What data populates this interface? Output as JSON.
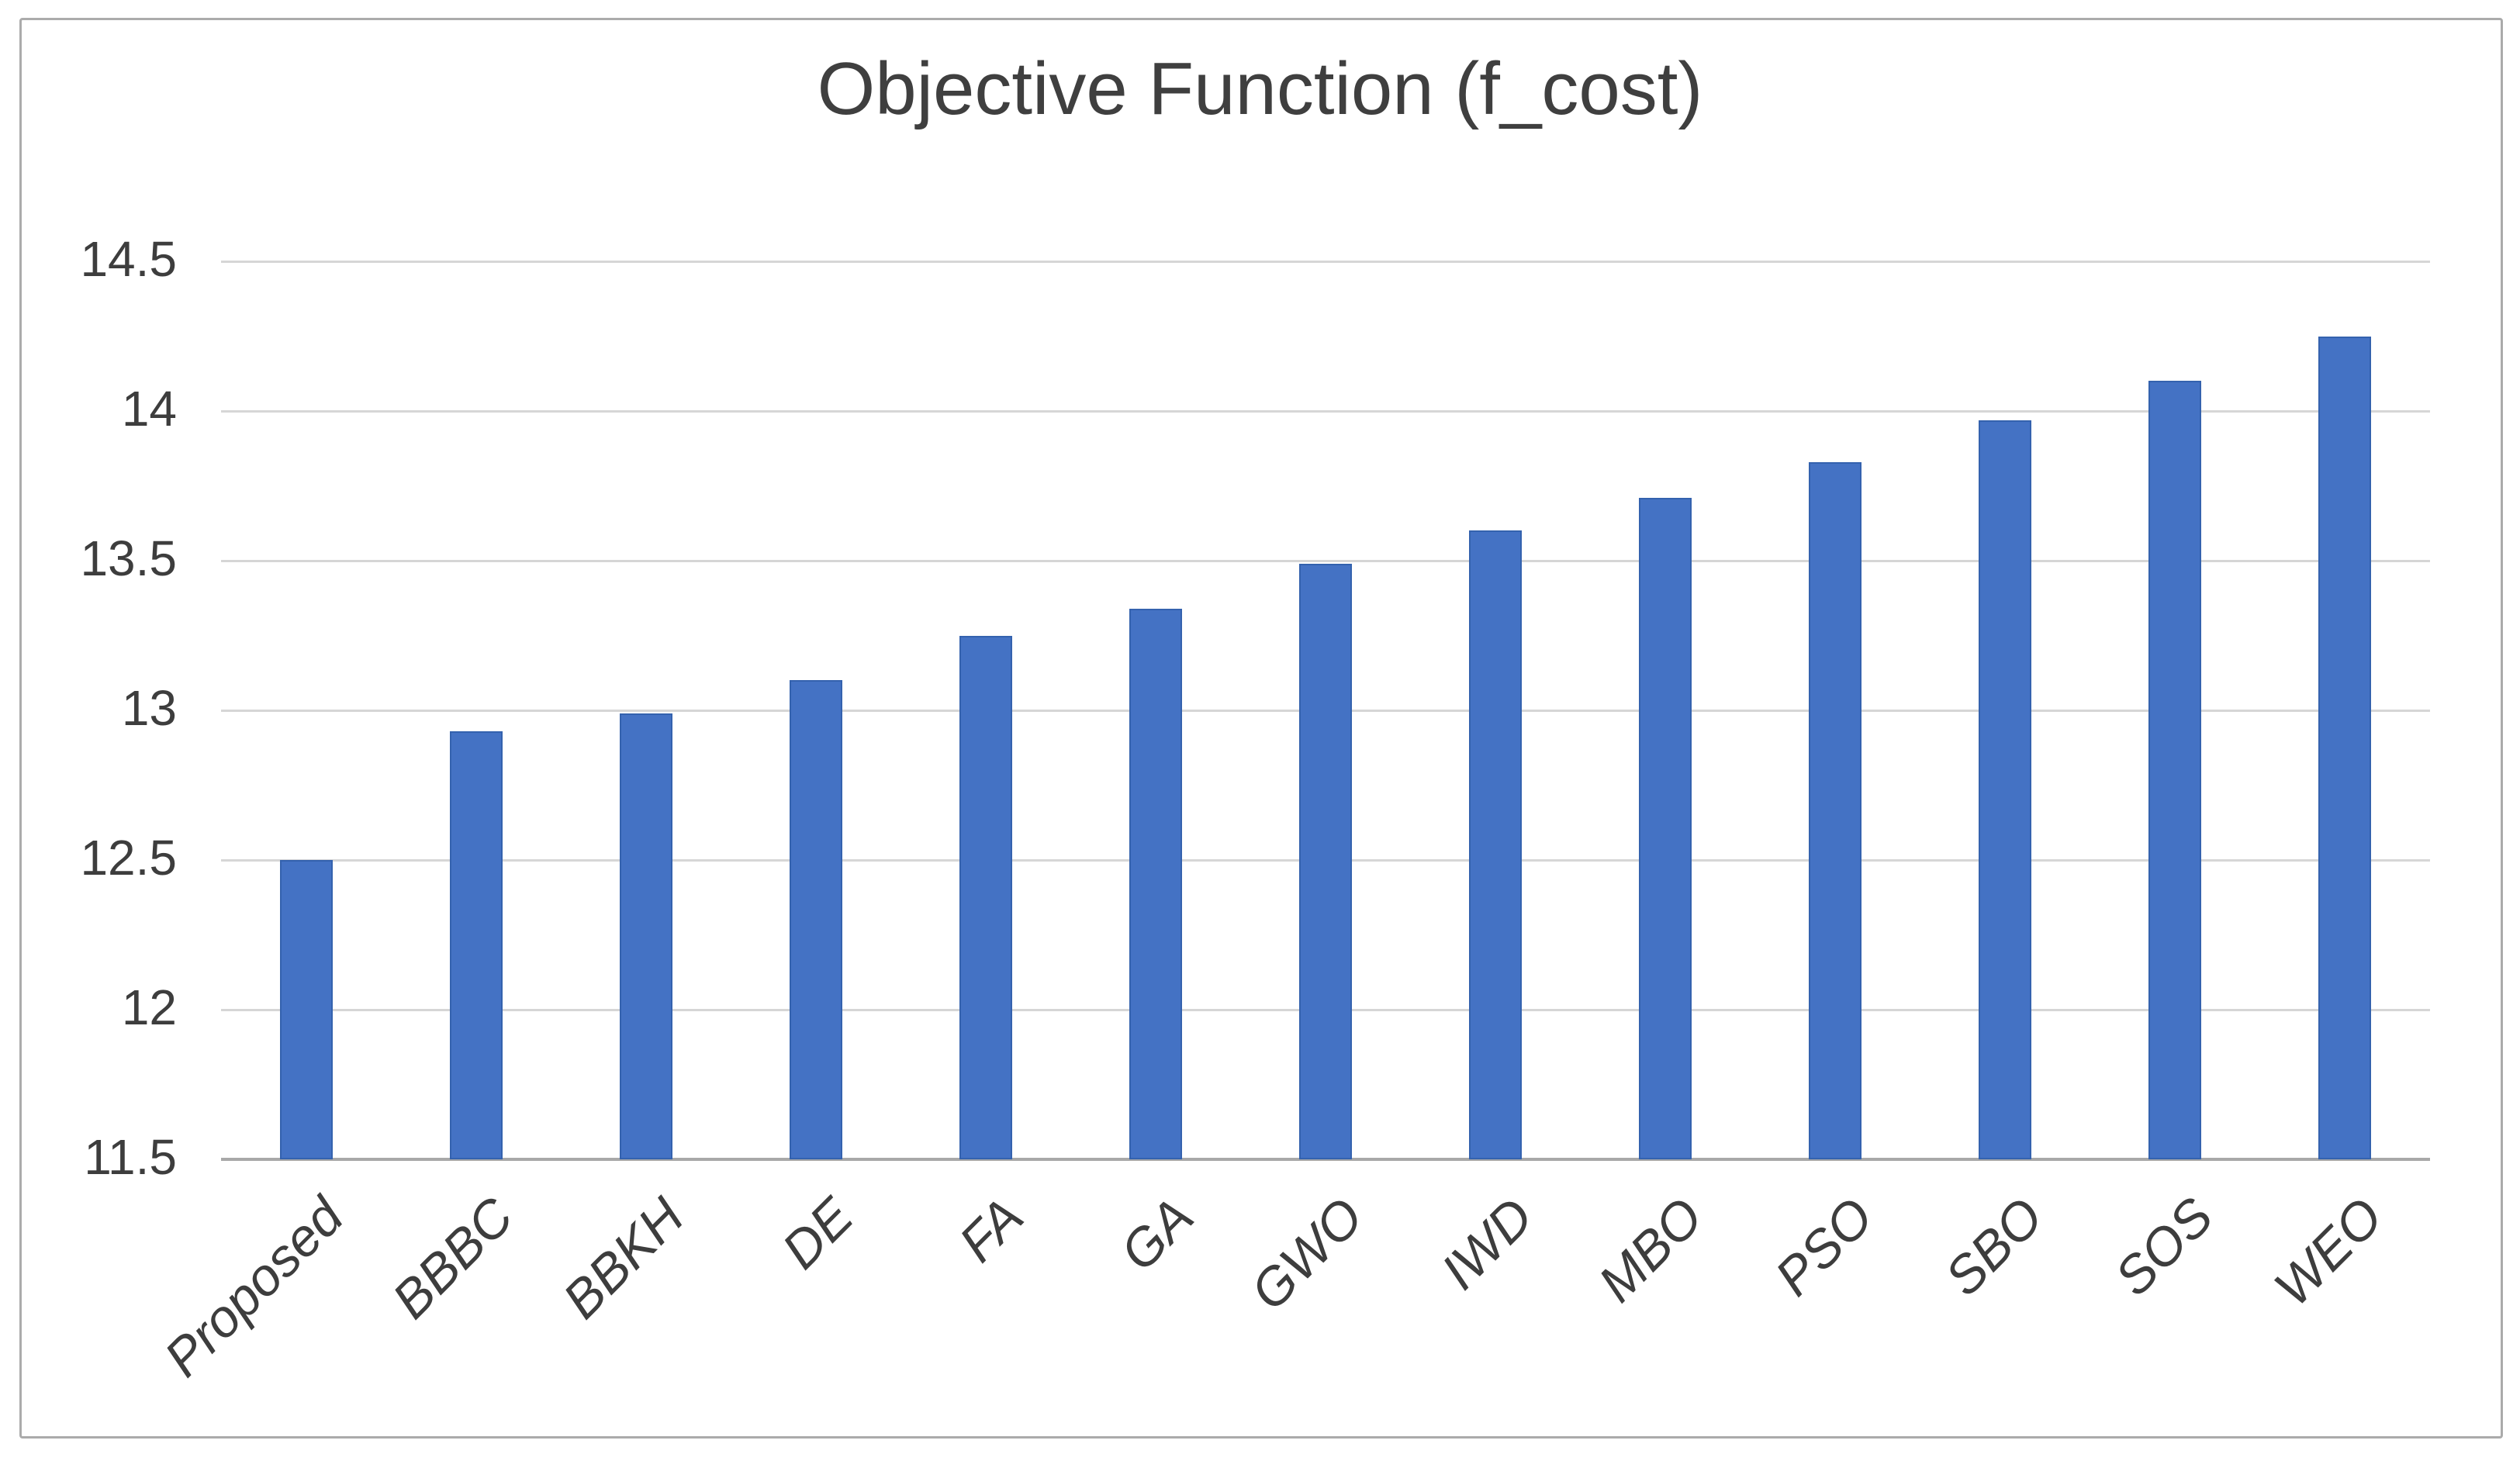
{
  "figure": {
    "background": "#ffffff",
    "border_color": "#ababab"
  },
  "chart_data": {
    "type": "bar",
    "title": "Objective Function (f_cost)",
    "xlabel": "",
    "ylabel": "",
    "categories": [
      "Proposed",
      "BBBC",
      "BBKH",
      "DE",
      "FA",
      "GA",
      "GWO",
      "IWD",
      "MBO",
      "PSO",
      "SBO",
      "SOS",
      "WEO"
    ],
    "values": [
      12.5,
      12.93,
      12.99,
      13.1,
      13.25,
      13.34,
      13.49,
      13.6,
      13.71,
      13.83,
      13.97,
      14.1,
      14.25
    ],
    "ylim": [
      11.5,
      14.5
    ],
    "yticks": [
      {
        "label": "14.5",
        "value": 14.5
      },
      {
        "label": "14",
        "value": 14.0
      },
      {
        "label": "13.5",
        "value": 13.5
      },
      {
        "label": "13",
        "value": 13.0
      },
      {
        "label": "12.5",
        "value": 12.5
      },
      {
        "label": "12",
        "value": 12.0
      },
      {
        "label": "11.5",
        "value": 11.5
      }
    ],
    "grid": true,
    "legend": false,
    "bar_color": "#4472c4",
    "bar_border_color": "#3462ae",
    "gridline_color": "#d6d6d6",
    "axis_line_color": "#a8a8a8",
    "tick_label_color": "#3d3d3d",
    "title_color": "#3f3f3f"
  }
}
